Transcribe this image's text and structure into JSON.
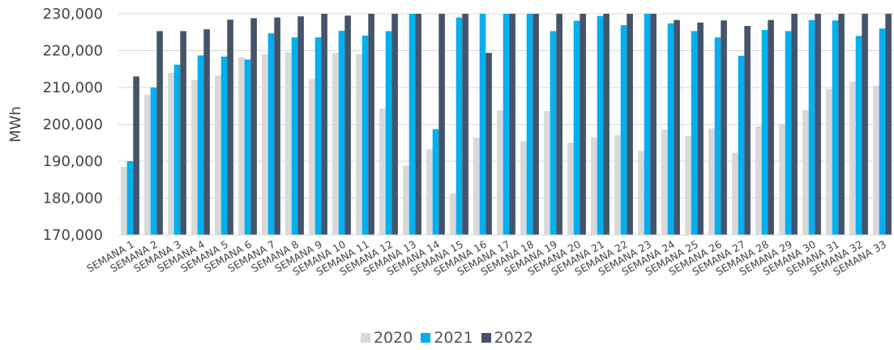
{
  "chart_data": {
    "type": "bar",
    "title": "",
    "xlabel": "",
    "ylabel": "MWh",
    "ylim": [
      170000,
      230000
    ],
    "yticks": [
      170000,
      180000,
      190000,
      200000,
      210000,
      220000,
      230000
    ],
    "ytick_labels": [
      "170,000",
      "180,000",
      "190,000",
      "200,000",
      "210,000",
      "220,000",
      "230,000"
    ],
    "grid": true,
    "legend_position": "bottom-center",
    "categories": [
      "SEMANA 1",
      "SEMANA 2",
      "SEMANA 3",
      "SEMANA 4",
      "SEMANA 5",
      "SEMANA 6",
      "SEMANA 7",
      "SEMANA 8",
      "SEMANA 9",
      "SEMANA 10",
      "SEMANA 11",
      "SEMANA 12",
      "SEMANA 13",
      "SEMANA 14",
      "SEMANA 15",
      "SEMANA 16",
      "SEMANA 17",
      "SEMANA 18",
      "SEMANA 19",
      "SEMANA 20",
      "SEMANA 21",
      "SEMANA 22",
      "SEMANA 23",
      "SEMANA 24",
      "SEMANA 25",
      "SEMANA 26",
      "SEMANA 27",
      "SEMANA 28",
      "SEMANA 29",
      "SEMANA 30",
      "SEMANA 31",
      "SEMANA 32",
      "SEMANA 33"
    ],
    "series": [
      {
        "name": "2020",
        "color": "#d9d9d9",
        "values": [
          188500,
          208000,
          214000,
          212000,
          213200,
          218200,
          219000,
          219600,
          212300,
          219400,
          219000,
          204300,
          188800,
          193200,
          181300,
          196400,
          203800,
          195400,
          203600,
          195000,
          196500,
          197100,
          192800,
          198600,
          196800,
          198900,
          192300,
          199500,
          200000,
          203900,
          209600,
          211600,
          210500
        ]
      },
      {
        "name": "2021",
        "color": "#00b0f0",
        "values": [
          190000,
          210000,
          216200,
          218700,
          218400,
          217600,
          224700,
          223600,
          223600,
          225400,
          224100,
          225300,
          232000,
          198700,
          229000,
          232000,
          232000,
          232000,
          225300,
          228100,
          229400,
          226900,
          232000,
          227400,
          225300,
          223600,
          218600,
          225600,
          225300,
          228300,
          228200,
          224000,
          226000
        ]
      },
      {
        "name": "2022",
        "color": "#44546a",
        "values": [
          213000,
          225300,
          225300,
          225800,
          228400,
          228800,
          229000,
          229300,
          232000,
          229500,
          232000,
          232000,
          232000,
          232000,
          232000,
          219400,
          232000,
          232000,
          232000,
          232000,
          232000,
          232000,
          232000,
          228300,
          227600,
          228200,
          226700,
          228300,
          232000,
          232000,
          232000,
          232000,
          232000
        ]
      }
    ]
  }
}
